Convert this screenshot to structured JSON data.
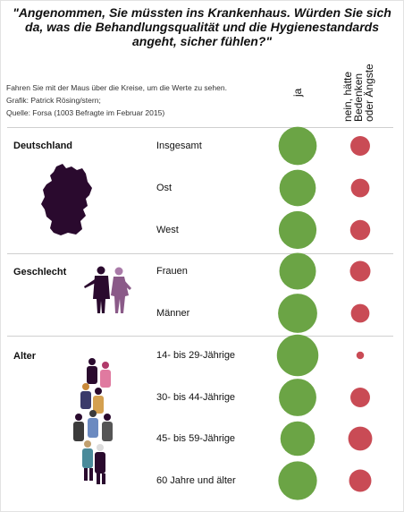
{
  "title": "\"Angenommen, Sie müssten ins Krankenhaus. Würden Sie sich da, was die Behandlungsqualität und die Hygienestandards angeht, sicher fühlen?\"",
  "note": "Fahren Sie mit der Maus über die Kreise, um die Werte zu sehen.",
  "credit": "Grafik: Patrick Rösing/stern;",
  "source": "Quelle: Forsa (1003 Befragte im Februar 2015)",
  "colors": {
    "ja": "#6ba445",
    "nein": "#c94b55",
    "icon": "#2a0a2e"
  },
  "chart_data": {
    "type": "bubble",
    "columns": [
      "ja",
      "nein, hätte Bedenken oder Ängste"
    ],
    "groups": [
      {
        "name": "Deutschland",
        "icon": "germany-map-icon",
        "rows": [
          {
            "label": "Insgesamt",
            "ja": 76,
            "nein": 20
          },
          {
            "label": "Ost",
            "ja": 69,
            "nein": 18
          },
          {
            "label": "West",
            "ja": 74,
            "nein": 21
          }
        ]
      },
      {
        "name": "Geschlecht",
        "icon": "couple-icon",
        "rows": [
          {
            "label": "Frauen",
            "ja": 70,
            "nein": 22
          },
          {
            "label": "Männer",
            "ja": 80,
            "nein": 18
          }
        ]
      },
      {
        "name": "Alter",
        "icon": "people-group-icon",
        "rows": [
          {
            "label": "14- bis 29-Jährige",
            "ja": 90,
            "nein": 3
          },
          {
            "label": "30- bis 44-Jährige",
            "ja": 73,
            "nein": 20
          },
          {
            "label": "45- bis 59-Jährige",
            "ja": 62,
            "nein": 30
          },
          {
            "label": "60 Jahre und älter",
            "ja": 78,
            "nein": 26
          }
        ]
      }
    ]
  }
}
